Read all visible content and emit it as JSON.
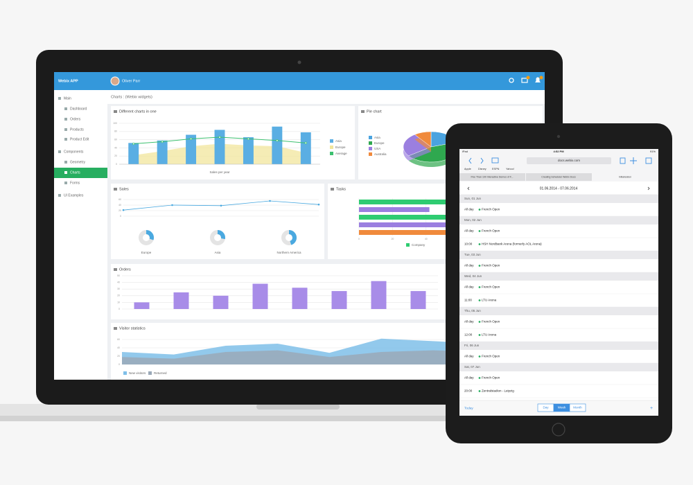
{
  "laptop": {
    "app_title": "Webix APP",
    "user_name": "Oliver Parr",
    "breadcrumb": "Charts : (Webix widgets)",
    "sidebar": [
      "Main",
      "Dashboard",
      "Orders",
      "Products",
      "Product Edit",
      "Components",
      "Geometry",
      "Charts",
      "Forms",
      "UI Examples"
    ],
    "mixed_chart": {
      "type": "bar",
      "title": "Different charts in one",
      "x_label": "Sales per year",
      "ylim": [
        0,
        100
      ],
      "yticks": [
        0,
        20,
        40,
        60,
        80,
        100
      ],
      "grid": true,
      "series": [
        {
          "name": "Asia",
          "type": "bar",
          "color": "#5aaee3",
          "values": [
            52,
            58,
            72,
            84,
            66,
            92,
            78
          ]
        },
        {
          "name": "Europe",
          "type": "area",
          "color": "#f1e59c",
          "values": [
            22,
            32,
            44,
            50,
            46,
            44,
            28
          ]
        },
        {
          "name": "Average",
          "type": "line",
          "color": "#3cc06f",
          "values": [
            50,
            55,
            62,
            66,
            62,
            58,
            52
          ]
        }
      ]
    },
    "pie_chart": {
      "type": "pie",
      "title": "Pie chart",
      "categories": [
        "Asia",
        "Europe",
        "USA",
        "Australia"
      ],
      "values": [
        20,
        45,
        25,
        10
      ],
      "colors": [
        "#4aa3df",
        "#2fa84f",
        "#9b7fe0",
        "#f08a3c"
      ]
    },
    "sales_chart": {
      "type": "line",
      "title": "Sales",
      "ylim": [
        0,
        70
      ],
      "yticks": [
        0,
        20,
        40,
        60
      ],
      "grid": true,
      "color": "#4aa9e0",
      "values": [
        22,
        40,
        38,
        55,
        42
      ],
      "donuts": {
        "categories": [
          "Europe",
          "Asia",
          "Northern America"
        ],
        "values": [
          30,
          28,
          45
        ],
        "color": "#4aa9e0"
      }
    },
    "tasks_chart": {
      "type": "barh",
      "title": "Tasks",
      "xlim": [
        0,
        100
      ],
      "xticks": [
        0,
        20,
        40,
        60,
        80,
        100
      ],
      "values": [
        100,
        42,
        100,
        62,
        100
      ],
      "colors": [
        "#2ecc71",
        "#9b7fe0",
        "#2ecc71",
        "#9b7fe0",
        "#f08a3c"
      ],
      "legend": [
        {
          "name": "Company",
          "color": "#2ecc71"
        }
      ]
    },
    "orders_chart": {
      "type": "bar",
      "title": "Orders",
      "ylim": [
        0,
        50
      ],
      "yticks": [
        0,
        10,
        20,
        30,
        40,
        50
      ],
      "grid": true,
      "color": "#a88ce8",
      "values": [
        10,
        25,
        20,
        38,
        32,
        27,
        42,
        27
      ]
    },
    "visitors_chart": {
      "type": "area",
      "title": "Visitor statistics",
      "ylim": [
        0,
        70
      ],
      "yticks": [
        0,
        20,
        40,
        60
      ],
      "grid": true,
      "series": [
        {
          "name": "New visitors",
          "color": "#7fbfe9",
          "values": [
            30,
            24,
            45,
            50,
            28,
            62,
            56,
            50
          ]
        },
        {
          "name": "Returned",
          "color": "#9aa9b8",
          "values": [
            18,
            14,
            30,
            34,
            18,
            30,
            34,
            30
          ]
        }
      ]
    }
  },
  "tablet": {
    "status": {
      "carrier": "iPad",
      "time": "4:52 PM",
      "battery": "91%"
    },
    "url": "docs.webix.com",
    "bookmarks": [
      "Apple",
      "Disney",
      "ESPN",
      "Yahoo!"
    ],
    "tabs": [
      "Five Than 100 Interactive Demos of F...",
      "Creating Scheduler Webix Docs",
      "Initialization"
    ],
    "date_range": "01.06.2014 - 07.06.2014",
    "days": [
      {
        "date": "Sun, 01 Jun",
        "events": [
          {
            "time": "All day",
            "text": "French Open"
          }
        ]
      },
      {
        "date": "Mon, 02 Jun",
        "events": [
          {
            "time": "All day",
            "text": "French Open"
          },
          {
            "time": "10:00",
            "text": "HSH Nordbank Arena (formerly AOL Arena)"
          }
        ]
      },
      {
        "date": "Tue, 03 Jun",
        "events": [
          {
            "time": "All day",
            "text": "French Open"
          }
        ]
      },
      {
        "date": "Wed, 04 Jun",
        "events": [
          {
            "time": "All day",
            "text": "French Open"
          },
          {
            "time": "11:00",
            "text": "LTU Arena"
          }
        ]
      },
      {
        "date": "Thu, 05 Jun",
        "events": [
          {
            "time": "All day",
            "text": "French Open"
          },
          {
            "time": "12:00",
            "text": "LTU Arena"
          }
        ]
      },
      {
        "date": "Fri, 06 Jun",
        "events": [
          {
            "time": "All day",
            "text": "French Open"
          }
        ]
      },
      {
        "date": "Sat, 07 Jun",
        "events": [
          {
            "time": "All day",
            "text": "French Open"
          },
          {
            "time": "20:00",
            "text": "Zentralstadion - Leipzig"
          }
        ]
      }
    ],
    "today": "Today",
    "views": [
      "Day",
      "Week",
      "Month"
    ],
    "add": "+"
  }
}
